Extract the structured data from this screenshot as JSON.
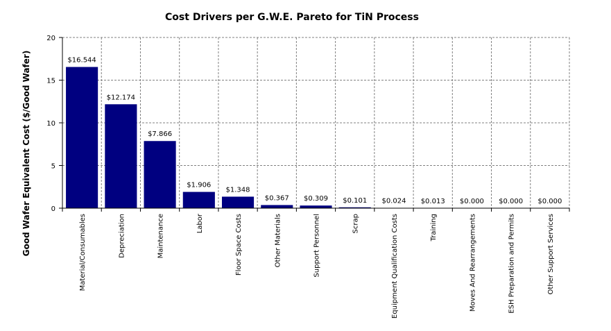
{
  "chart_data": {
    "type": "bar",
    "title": "Cost Drivers per G.W.E. Pareto for TiN Process",
    "xlabel": "",
    "ylabel": "Good Wafer Equivalent Cost ($/Good Wafer)",
    "ylim": [
      0,
      20
    ],
    "yticks": [
      0,
      5,
      10,
      15,
      20
    ],
    "grid": true,
    "bar_color": "#000080",
    "categories": [
      "Material/Consumables",
      "Depreciation",
      "Maintenance",
      "Labor",
      "Floor Space Costs",
      "Other Materials",
      "Support Personnel",
      "Scrap",
      "Equipment Qualification Costs",
      "Training",
      "Moves And Rearrangements",
      "ESH Preparation and Permits",
      "Other Support Services"
    ],
    "values": [
      16.544,
      12.174,
      7.866,
      1.906,
      1.348,
      0.367,
      0.309,
      0.101,
      0.024,
      0.013,
      0.0,
      0.0,
      0.0
    ],
    "data_labels": [
      "$16.544",
      "$12.174",
      "$7.866",
      "$1.906",
      "$1.348",
      "$0.367",
      "$0.309",
      "$0.101",
      "$0.024",
      "$0.013",
      "$0.000",
      "$0.000",
      "$0.000"
    ]
  }
}
